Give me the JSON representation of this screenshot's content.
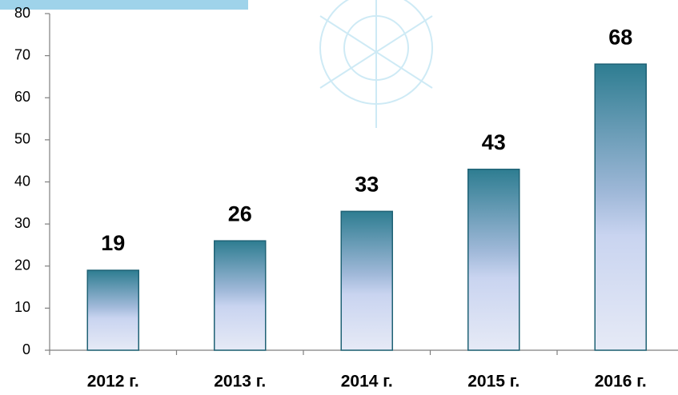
{
  "chart_data": {
    "type": "bar",
    "categories": [
      "2012 г.",
      "2013 г.",
      "2014 г.",
      "2015 г.",
      "2016 г."
    ],
    "values": [
      19,
      26,
      33,
      43,
      68
    ],
    "color": "#2e7d91",
    "ylim": [
      0,
      80
    ],
    "yticks": [
      0,
      10,
      20,
      30,
      40,
      50,
      60,
      70,
      80
    ],
    "grid": false
  }
}
